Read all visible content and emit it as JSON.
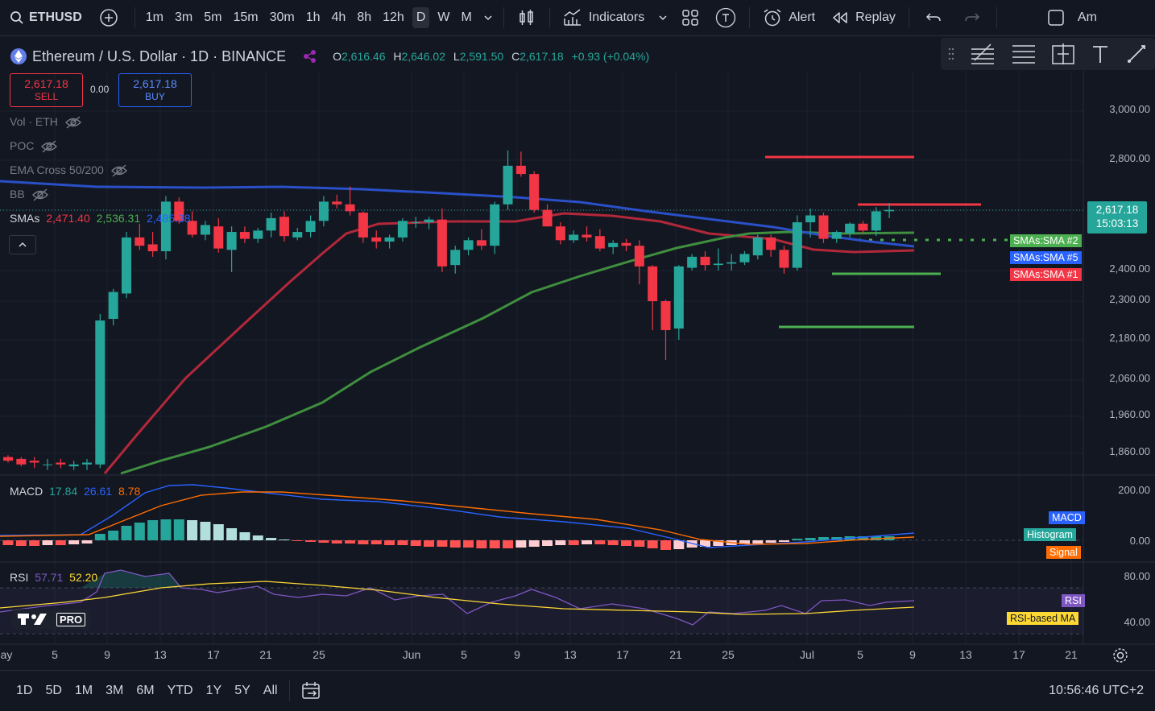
{
  "toolbar": {
    "symbol": "ETHUSD",
    "timeframes": [
      "1m",
      "3m",
      "5m",
      "15m",
      "30m",
      "1h",
      "4h",
      "8h",
      "12h",
      "D",
      "W",
      "M"
    ],
    "active_timeframe": "D",
    "indicators_label": "Indicators",
    "alert_label": "Alert",
    "replay_label": "Replay",
    "account_label": "Am"
  },
  "legend": {
    "title": "Ethereum / U.S. Dollar · 1D · BINANCE",
    "o_label": "O",
    "o_value": "2,616.46",
    "h_label": "H",
    "h_value": "2,646.02",
    "l_label": "L",
    "l_value": "2,591.50",
    "c_label": "C",
    "c_value": "2,617.18",
    "change": "+0.93 (+0.04%)",
    "sell_price": "2,617.18",
    "sell_label": "SELL",
    "spread": "0.00",
    "buy_price": "2,617.18",
    "buy_label": "BUY",
    "vol": "Vol · ETH",
    "poc": "POC",
    "ema_cross": "EMA Cross 50/200",
    "bb": "BB",
    "smas_label": "SMAs",
    "sma_values": [
      "2,471.40",
      "2,536.31",
      "2,485.38"
    ]
  },
  "price_axis": [
    "3,000.00",
    "2,800.00",
    "2,400.00",
    "2,300.00",
    "2,180.00",
    "2,060.00",
    "1,960.00",
    "1,860.00"
  ],
  "current_price": {
    "price": "2,617.18",
    "countdown": "15:03:13"
  },
  "sma_tags": [
    {
      "label": "SMAs:SMA #2",
      "color": "#4caf50"
    },
    {
      "label": "SMAs:SMA #5",
      "color": "#2962ff"
    },
    {
      "label": "SMAs:SMA #1",
      "color": "#f23645"
    }
  ],
  "macd": {
    "label": "MACD",
    "v1": "17.84",
    "v2": "26.61",
    "v3": "8.78",
    "axis": [
      "200.00",
      "0.00"
    ],
    "tags": [
      {
        "label": "MACD",
        "color": "#2962ff"
      },
      {
        "label": "Histogram",
        "color": "#26a69a"
      },
      {
        "label": "Signal",
        "color": "#ff6d00"
      }
    ]
  },
  "rsi": {
    "label": "RSI",
    "v1": "57.71",
    "v2": "52.20",
    "axis": [
      "80.00",
      "40.00"
    ],
    "tags": [
      {
        "label": "RSI",
        "color": "#7e57c2"
      },
      {
        "label": "RSI-based MA",
        "color": "#fdd835"
      }
    ]
  },
  "logo_text": "PRO",
  "time_axis": [
    "ay",
    "5",
    "9",
    "13",
    "17",
    "21",
    "25",
    "Jun",
    "5",
    "9",
    "13",
    "17",
    "21",
    "25",
    "Jul",
    "5",
    "9",
    "13",
    "17",
    "21"
  ],
  "ranges": [
    "1D",
    "5D",
    "1M",
    "3M",
    "6M",
    "YTD",
    "1Y",
    "5Y",
    "All"
  ],
  "clock": "10:56:46 UTC+2",
  "colors": {
    "up": "#26a69a",
    "down": "#f23645",
    "bg": "#131722"
  },
  "chart_data": {
    "type": "candlestick",
    "candles": [
      [
        1850,
        1855,
        1835,
        1840
      ],
      [
        1845,
        1850,
        1825,
        1830
      ],
      [
        1840,
        1850,
        1820,
        1835
      ],
      [
        1830,
        1845,
        1815,
        1830
      ],
      [
        1835,
        1845,
        1820,
        1830
      ],
      [
        1825,
        1840,
        1815,
        1830
      ],
      [
        1830,
        1845,
        1815,
        1835
      ],
      [
        1830,
        2260,
        1820,
        2240
      ],
      [
        2245,
        2340,
        2225,
        2330
      ],
      [
        2325,
        2540,
        2310,
        2520
      ],
      [
        2520,
        2570,
        2475,
        2490
      ],
      [
        2495,
        2540,
        2450,
        2470
      ],
      [
        2470,
        2670,
        2440,
        2650
      ],
      [
        2650,
        2665,
        2570,
        2580
      ],
      [
        2580,
        2615,
        2520,
        2530
      ],
      [
        2530,
        2580,
        2510,
        2565
      ],
      [
        2560,
        2590,
        2465,
        2480
      ],
      [
        2475,
        2560,
        2395,
        2540
      ],
      [
        2540,
        2560,
        2500,
        2515
      ],
      [
        2515,
        2555,
        2500,
        2545
      ],
      [
        2545,
        2610,
        2520,
        2590
      ],
      [
        2595,
        2615,
        2505,
        2525
      ],
      [
        2520,
        2555,
        2510,
        2540
      ],
      [
        2540,
        2600,
        2520,
        2580
      ],
      [
        2580,
        2670,
        2560,
        2650
      ],
      [
        2650,
        2675,
        2625,
        2640
      ],
      [
        2640,
        2705,
        2600,
        2615
      ],
      [
        2610,
        2615,
        2500,
        2520
      ],
      [
        2520,
        2545,
        2480,
        2505
      ],
      [
        2505,
        2530,
        2480,
        2520
      ],
      [
        2520,
        2590,
        2505,
        2580
      ],
      [
        2575,
        2595,
        2555,
        2575
      ],
      [
        2575,
        2595,
        2550,
        2585
      ],
      [
        2585,
        2625,
        2395,
        2415
      ],
      [
        2420,
        2490,
        2390,
        2475
      ],
      [
        2475,
        2520,
        2455,
        2510
      ],
      [
        2510,
        2550,
        2475,
        2490
      ],
      [
        2490,
        2650,
        2460,
        2640
      ],
      [
        2640,
        2840,
        2620,
        2780
      ],
      [
        2780,
        2835,
        2740,
        2750
      ],
      [
        2750,
        2760,
        2610,
        2620
      ],
      [
        2620,
        2640,
        2560,
        2560
      ],
      [
        2560,
        2575,
        2495,
        2510
      ],
      [
        2510,
        2545,
        2500,
        2530
      ],
      [
        2530,
        2560,
        2505,
        2520
      ],
      [
        2525,
        2550,
        2470,
        2480
      ],
      [
        2485,
        2510,
        2460,
        2500
      ],
      [
        2500,
        2515,
        2470,
        2490
      ],
      [
        2490,
        2510,
        2355,
        2415
      ],
      [
        2415,
        2420,
        2210,
        2300
      ],
      [
        2300,
        2305,
        2120,
        2210
      ],
      [
        2215,
        2420,
        2180,
        2415
      ],
      [
        2410,
        2460,
        2400,
        2450
      ],
      [
        2450,
        2470,
        2400,
        2420
      ],
      [
        2420,
        2480,
        2400,
        2425
      ],
      [
        2425,
        2460,
        2400,
        2430
      ],
      [
        2430,
        2470,
        2420,
        2460
      ],
      [
        2455,
        2530,
        2440,
        2520
      ],
      [
        2520,
        2530,
        2450,
        2475
      ],
      [
        2475,
        2490,
        2390,
        2410
      ],
      [
        2410,
        2600,
        2400,
        2575
      ],
      [
        2575,
        2625,
        2520,
        2600
      ],
      [
        2600,
        2610,
        2500,
        2515
      ],
      [
        2515,
        2545,
        2500,
        2540
      ],
      [
        2535,
        2575,
        2520,
        2570
      ],
      [
        2570,
        2580,
        2535,
        2545
      ],
      [
        2545,
        2630,
        2525,
        2615
      ],
      [
        2615,
        2645,
        2590,
        2620
      ]
    ]
  }
}
